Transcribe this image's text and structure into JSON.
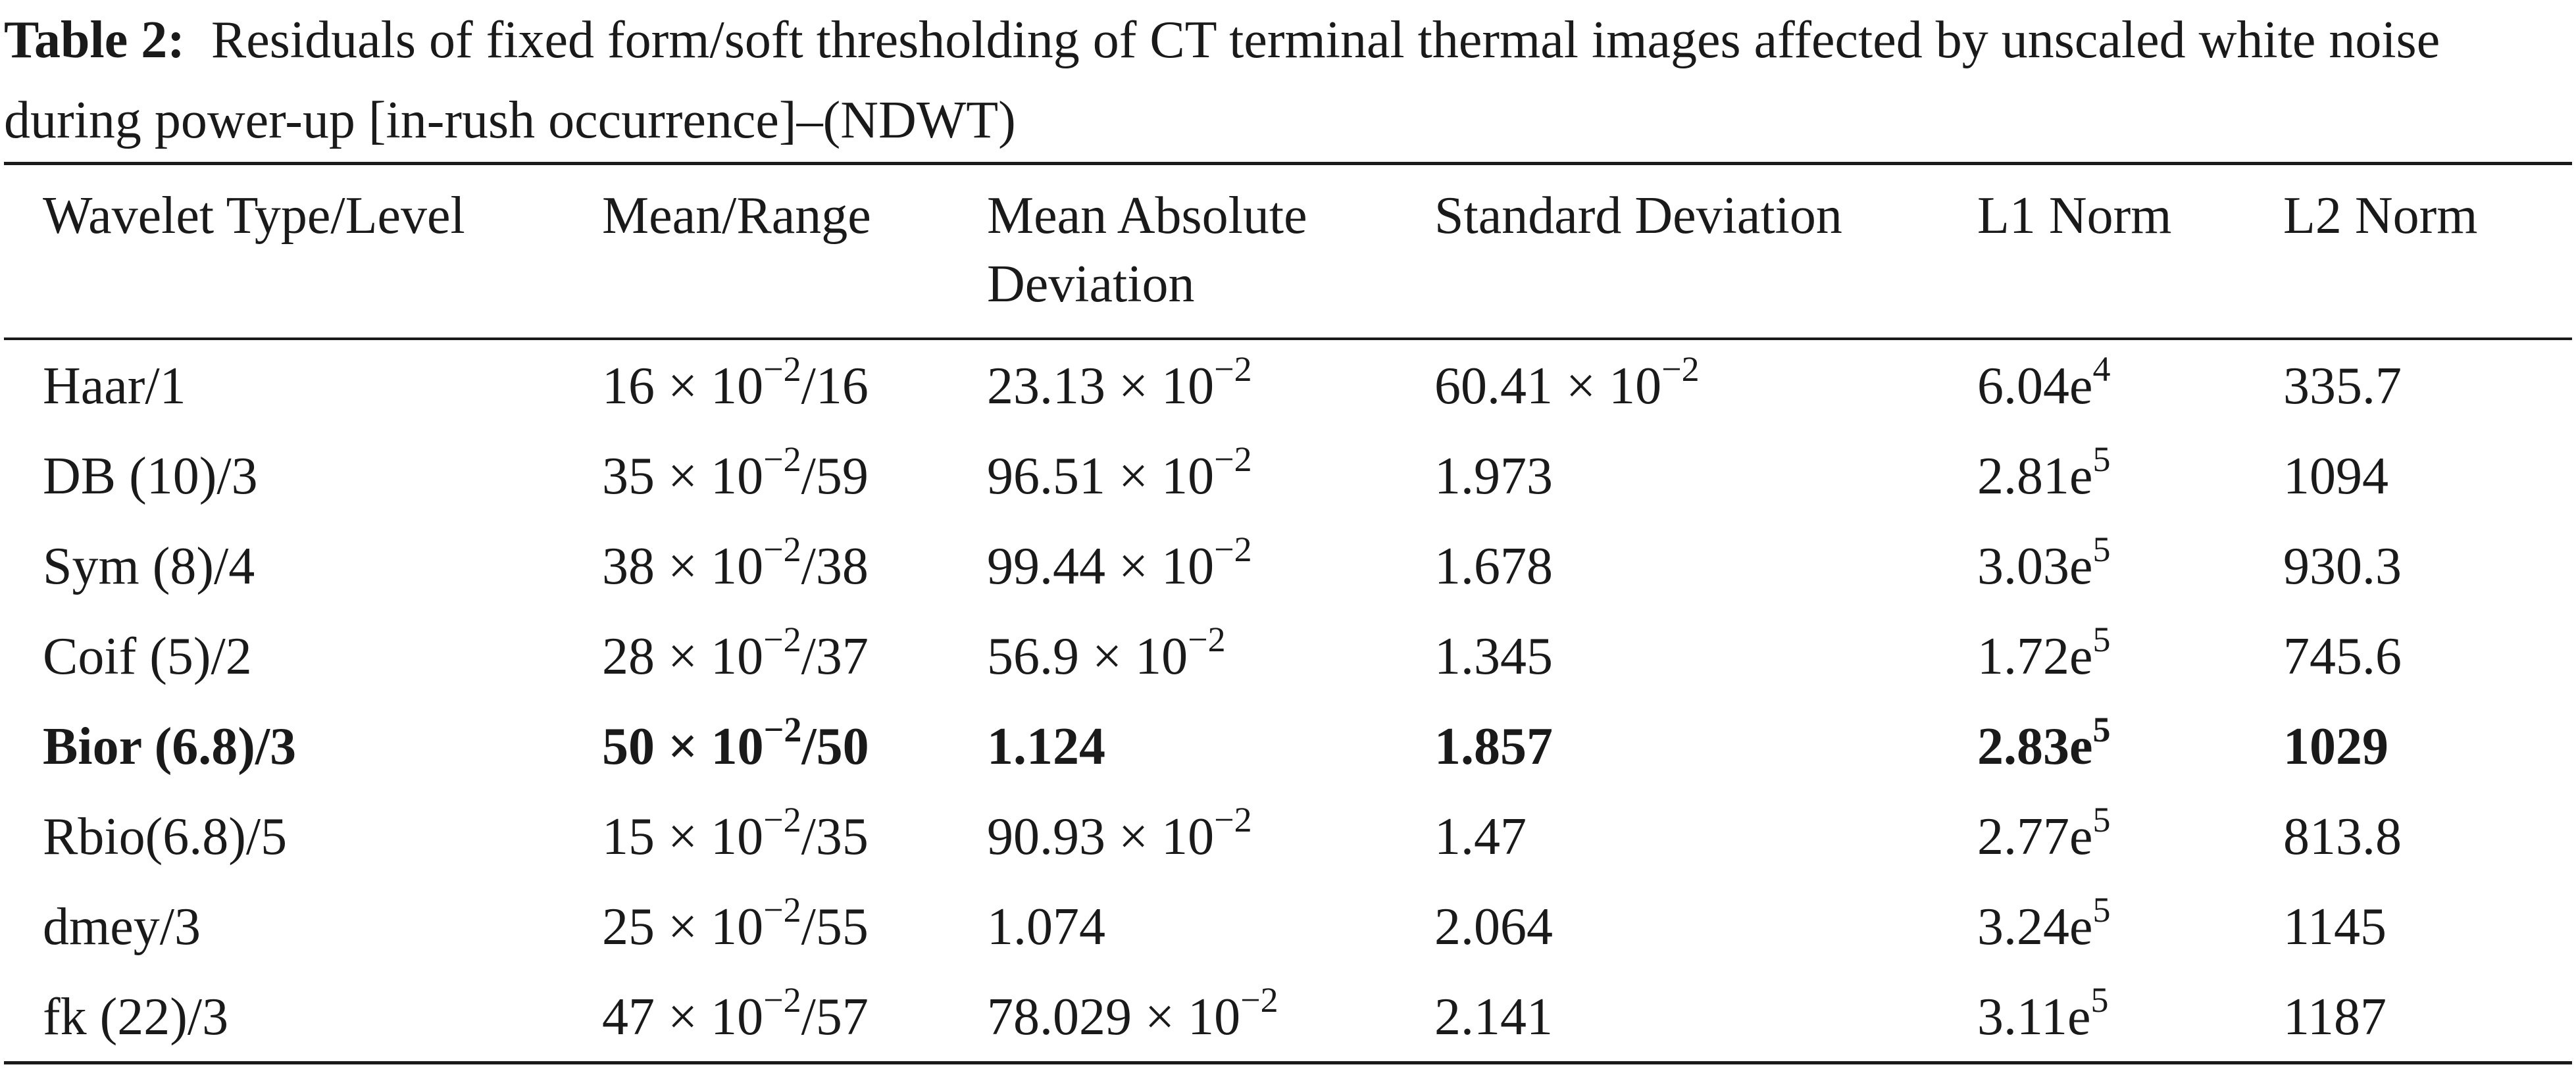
{
  "caption": {
    "label": "Table 2:",
    "text": "Residuals of fixed form/soft thresholding of CT terminal thermal images affected by unscaled white noise during power-up [in-rush occurrence]–(NDWT)"
  },
  "headers": {
    "wavelet": "Wavelet Type/Level",
    "mean_range": "Mean/Range",
    "mad_line1": "Mean Absolute",
    "mad_line2": "Deviation",
    "std": "Standard Deviation",
    "l1": "L1 Norm",
    "l2": "L2 Norm"
  },
  "rows": [
    {
      "wavelet": "Haar/1",
      "mean_pre": "16 × 10",
      "mean_exp": "−2",
      "mean_post": "/16",
      "mad_pre": "23.13 × 10",
      "mad_exp": "−2",
      "std_pre": "60.41 × 10",
      "std_exp": "−2",
      "l1_pre": "6.04e",
      "l1_exp": "4",
      "l2": "335.7",
      "bold": false
    },
    {
      "wavelet": "DB (10)/3",
      "mean_pre": "35 × 10",
      "mean_exp": "−2",
      "mean_post": "/59",
      "mad_pre": "96.51 × 10",
      "mad_exp": "−2",
      "std_pre": "1.973",
      "std_exp": "",
      "l1_pre": "2.81e",
      "l1_exp": "5",
      "l2": "1094",
      "bold": false
    },
    {
      "wavelet": "Sym (8)/4",
      "mean_pre": "38 × 10",
      "mean_exp": "−2",
      "mean_post": "/38",
      "mad_pre": "99.44 × 10",
      "mad_exp": "−2",
      "std_pre": "1.678",
      "std_exp": "",
      "l1_pre": "3.03e",
      "l1_exp": "5",
      "l2": "930.3",
      "bold": false
    },
    {
      "wavelet": "Coif (5)/2",
      "mean_pre": "28 × 10",
      "mean_exp": "−2",
      "mean_post": "/37",
      "mad_pre": "56.9 × 10",
      "mad_exp": "−2",
      "std_pre": "1.345",
      "std_exp": "",
      "l1_pre": "1.72e",
      "l1_exp": "5",
      "l2": "745.6",
      "bold": false
    },
    {
      "wavelet": "Bior (6.8)/3",
      "mean_pre": "50 × 10",
      "mean_exp": "−2",
      "mean_post": "/50",
      "mad_pre": "1.124",
      "mad_exp": "",
      "std_pre": "1.857",
      "std_exp": "",
      "l1_pre": "2.83e",
      "l1_exp": "5",
      "l2": "1029",
      "bold": true
    },
    {
      "wavelet": "Rbio(6.8)/5",
      "mean_pre": "15 × 10",
      "mean_exp": "−2",
      "mean_post": "/35",
      "mad_pre": "90.93 × 10",
      "mad_exp": "−2",
      "std_pre": "1.47",
      "std_exp": "",
      "l1_pre": "2.77e",
      "l1_exp": "5",
      "l2": "813.8",
      "bold": false
    },
    {
      "wavelet": "dmey/3",
      "mean_pre": "25 × 10",
      "mean_exp": "−2",
      "mean_post": "/55",
      "mad_pre": "1.074",
      "mad_exp": "",
      "std_pre": "2.064",
      "std_exp": "",
      "l1_pre": "3.24e",
      "l1_exp": "5",
      "l2": "1145",
      "bold": false
    },
    {
      "wavelet": "fk (22)/3",
      "mean_pre": "47 × 10",
      "mean_exp": "−2",
      "mean_post": "/57",
      "mad_pre": "78.029 × 10",
      "mad_exp": "−2",
      "std_pre": "2.141",
      "std_exp": "",
      "l1_pre": "3.11e",
      "l1_exp": "5",
      "l2": "1187",
      "bold": false
    }
  ]
}
